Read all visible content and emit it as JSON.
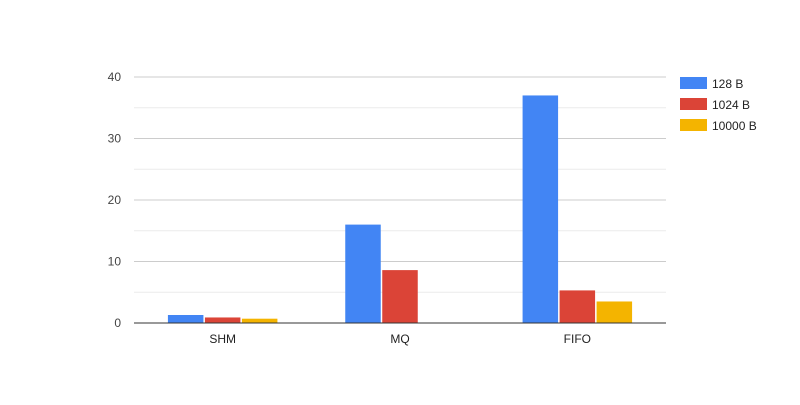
{
  "chart_data": {
    "type": "bar",
    "categories": [
      "SHM",
      "MQ",
      "FIFO"
    ],
    "series": [
      {
        "name": "128 B",
        "color": "#4285f4",
        "values": [
          1.3,
          16.0,
          37.0
        ]
      },
      {
        "name": "1024 B",
        "color": "#db4437",
        "values": [
          0.9,
          8.6,
          5.3
        ]
      },
      {
        "name": "10000 B",
        "color": "#f4b400",
        "values": [
          0.7,
          0,
          3.5
        ]
      }
    ],
    "ylim": [
      0,
      40
    ],
    "yticks": [
      0,
      10,
      20,
      30,
      40
    ],
    "minor_gridlines": true,
    "legend_position": "right",
    "title": "",
    "xlabel": "",
    "ylabel": ""
  }
}
